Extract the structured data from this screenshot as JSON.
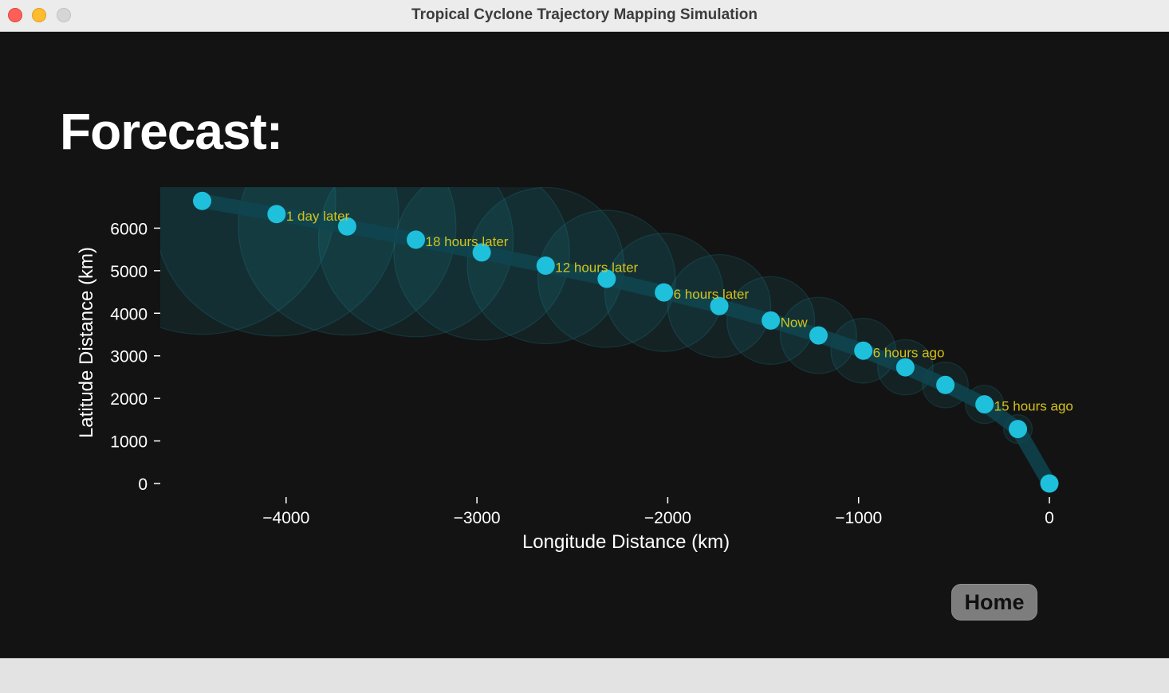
{
  "window": {
    "title": "Tropical Cyclone Trajectory Mapping Simulation"
  },
  "heading": "Forecast:",
  "home_button": "Home",
  "colors": {
    "background": "#131313",
    "point": "#1ec0dc",
    "track": "#0e4550",
    "cone": "#1aa8b8",
    "annotation": "#d4c21a",
    "text": "#ffffff"
  },
  "chart_data": {
    "type": "scatter",
    "xlabel": "Longitude Distance (km)",
    "ylabel": "Latitude Distance (km)",
    "xlim": [
      -4660,
      130
    ],
    "ylim": [
      -180,
      7000
    ],
    "xticks": [
      -4000,
      -3000,
      -2000,
      -1000,
      0
    ],
    "xtick_labels": [
      "−4000",
      "−3000",
      "−2000",
      "−1000",
      "0"
    ],
    "yticks": [
      0,
      1000,
      2000,
      3000,
      4000,
      5000,
      6000
    ],
    "ytick_labels": [
      "0",
      "1000",
      "2000",
      "3000",
      "4000",
      "5000",
      "6000"
    ],
    "grid": false,
    "points": [
      {
        "x": 0,
        "y": 0,
        "r": 45,
        "label": ""
      },
      {
        "x": -165,
        "y": 1280,
        "r": 75,
        "label": ""
      },
      {
        "x": -340,
        "y": 1860,
        "r": 100,
        "label": "15 hours ago"
      },
      {
        "x": -545,
        "y": 2315,
        "r": 120,
        "label": ""
      },
      {
        "x": -755,
        "y": 2730,
        "r": 145,
        "label": ""
      },
      {
        "x": -975,
        "y": 3120,
        "r": 170,
        "label": "6 hours ago"
      },
      {
        "x": -1210,
        "y": 3480,
        "r": 200,
        "label": ""
      },
      {
        "x": -1460,
        "y": 3830,
        "r": 230,
        "label": "Now"
      },
      {
        "x": -1730,
        "y": 4170,
        "r": 270,
        "label": ""
      },
      {
        "x": -2020,
        "y": 4490,
        "r": 310,
        "label": "6 hours later"
      },
      {
        "x": -2320,
        "y": 4810,
        "r": 360,
        "label": ""
      },
      {
        "x": -2640,
        "y": 5120,
        "r": 410,
        "label": "12 hours later"
      },
      {
        "x": -2975,
        "y": 5430,
        "r": 460,
        "label": ""
      },
      {
        "x": -3320,
        "y": 5730,
        "r": 510,
        "label": "18 hours later"
      },
      {
        "x": -3680,
        "y": 6040,
        "r": 570,
        "label": ""
      },
      {
        "x": -4050,
        "y": 6330,
        "r": 640,
        "label": "1 day later"
      },
      {
        "x": -4440,
        "y": 6640,
        "r": 700,
        "label": ""
      }
    ]
  }
}
